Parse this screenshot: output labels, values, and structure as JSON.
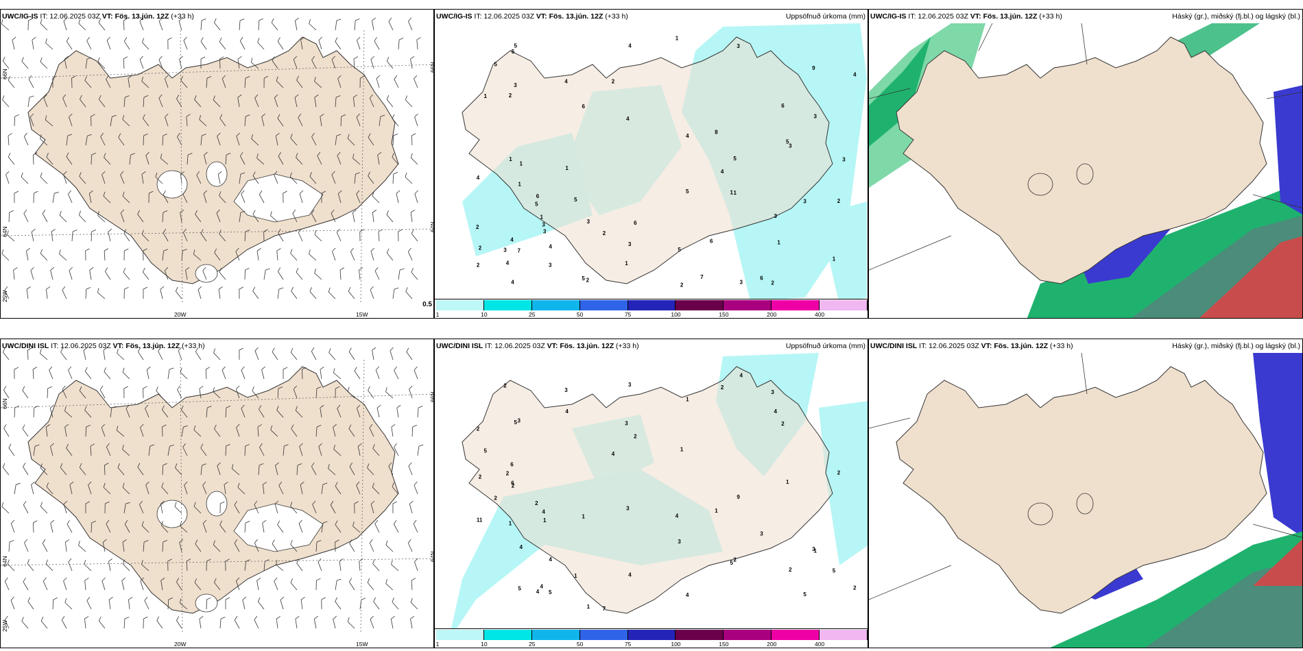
{
  "rows": [
    {
      "wind": {
        "model": "UWC/IG-IS",
        "it": "IT: 12.06.2025 03Z",
        "vt": "VT: Fös. 13.jún. 12Z",
        "lead": "(+33 h)",
        "badge": "0.5"
      },
      "precip": {
        "model": "UWC/IG-IS",
        "it": "IT: 12.06.2025 03Z",
        "vt": "VT: Fös. 13.jún. 12Z",
        "lead": "(+33 h)",
        "title": "Uppsöfnuð úrkoma (mm)"
      },
      "cloud": {
        "model": "UWC/IG-IS",
        "it": "IT: 12.06.2025 03Z",
        "vt": "VT: Fös. 13.jún. 12Z",
        "lead": "(+33 h)",
        "title": "Háský (gr.), miðský (fj.bl.) og lágský (bl.)"
      }
    },
    {
      "wind": {
        "model": "UWC/DINI ISL",
        "it": "IT: 12.06.2025 03Z",
        "vt": "VT: Fös. 13.jún. 12Z",
        "lead": "(+33 h)"
      },
      "precip": {
        "model": "UWC/DINI ISL",
        "it": "IT: 12.06.2025 03Z",
        "vt": "VT: Fös. 13.jún. 12Z",
        "lead": "(+33 h)",
        "title": "Uppsöfnuð úrkoma (mm)"
      },
      "cloud": {
        "model": "UWC/DINI ISL",
        "it": "IT: 12.06.2025 03Z",
        "vt": "VT: Fös. 13.jún. 12Z",
        "lead": "(+33 h)",
        "title": "Háský (gr.), miðský (fj.bl.) og lágský (bl.)"
      }
    }
  ],
  "grid_labels": {
    "lat_66": "66N",
    "lat_64": "64N",
    "lon_25": "25W",
    "lon_20": "20W",
    "lon_15": "15W"
  },
  "colorbar": {
    "ticks": [
      "1",
      "10",
      "25",
      "50",
      "75",
      "100",
      "150",
      "200",
      "400"
    ],
    "colors": [
      "#bdf7f7",
      "#00e5e5",
      "#10b5ec",
      "#2f63e8",
      "#2424b8",
      "#6a004a",
      "#a8007e",
      "#ef00a7",
      "#f0b7f0"
    ]
  },
  "precip_values_top": [
    "2",
    "5",
    "7",
    "3",
    "6",
    "2",
    "1",
    "9",
    "3",
    "1",
    "2",
    "5",
    "5",
    "4",
    "3",
    "4",
    "3",
    "1",
    "1",
    "3",
    "4",
    "2",
    "3",
    "1",
    "2",
    "4",
    "7",
    "3",
    "4",
    "3",
    "5",
    "6",
    "5",
    "6",
    "2",
    "3",
    "1",
    "5",
    "4",
    "3",
    "5",
    "4",
    "6",
    "4",
    "1",
    "3",
    "4",
    "5",
    "2",
    "5",
    "2",
    "1",
    "1",
    "1",
    "2",
    "1",
    "5",
    "3",
    "8",
    "4",
    "3",
    "6",
    "2",
    "4",
    "6",
    "1",
    "3"
  ],
  "precip_values_bottom": [
    "3",
    "4",
    "5",
    "2",
    "4",
    "2",
    "2",
    "5",
    "1",
    "9",
    "3",
    "4",
    "2",
    "4",
    "11",
    "5",
    "4",
    "1",
    "2",
    "3",
    "4",
    "6",
    "2",
    "5",
    "3",
    "1",
    "2",
    "2",
    "3",
    "4",
    "1",
    "2",
    "4",
    "2",
    "3",
    "4",
    "6",
    "5",
    "1",
    "3",
    "2",
    "4",
    "1",
    "1",
    "2",
    "5",
    "4",
    "7",
    "5",
    "3",
    "1",
    "1",
    "4",
    "1",
    "2",
    "3",
    "2"
  ],
  "colors": {
    "land": "#efdfcd",
    "ice": "#ffffff",
    "precip_light": "#b6f6f6",
    "high_cloud": "#1fb26e",
    "mid_cloud": "#4b6fa6",
    "low_cloud": "#3a3ad0",
    "convective": "#d84848"
  }
}
